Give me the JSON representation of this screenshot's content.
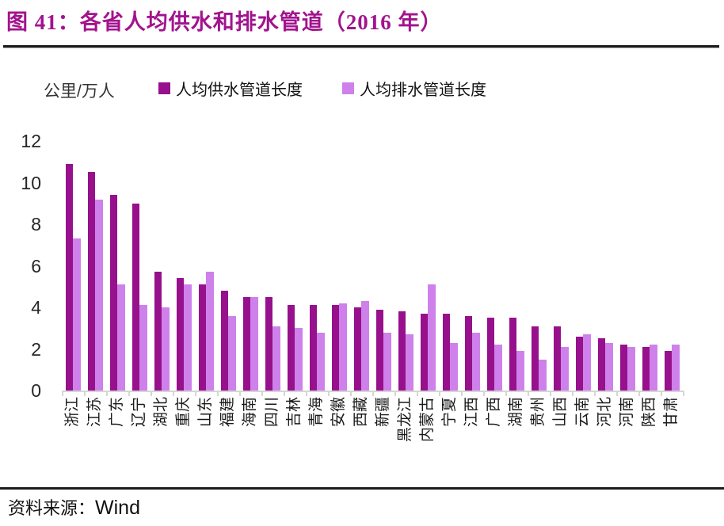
{
  "title": "图 41：各省人均供水和排水管道（2016 年）",
  "unit_label": "公里/万人",
  "source": {
    "prefix": "资料来源：",
    "name": "Wind"
  },
  "colors": {
    "supply": "#97108C",
    "drainage": "#CE81EA",
    "title": "#A2138E",
    "axis": "#D6D6D6",
    "text": "#262626"
  },
  "legend": [
    {
      "label": "人均供水管道长度",
      "color_key": "supply"
    },
    {
      "label": "人均排水管道长度",
      "color_key": "drainage"
    }
  ],
  "chart_data": {
    "type": "bar",
    "title": "各省人均供水和排水管道（2016 年）",
    "ylabel": "公里/万人",
    "xlabel": "",
    "ylim": [
      0,
      12
    ],
    "yticks": [
      0,
      2,
      4,
      6,
      8,
      10,
      12
    ],
    "grid": false,
    "legend_position": "top",
    "categories": [
      "浙江",
      "江苏",
      "广东",
      "辽宁",
      "湖北",
      "重庆",
      "山东",
      "福建",
      "海南",
      "四川",
      "吉林",
      "青海",
      "安徽",
      "西藏",
      "新疆",
      "黑龙江",
      "内蒙古",
      "宁夏",
      "江西",
      "广西",
      "湖南",
      "贵州",
      "山西",
      "云南",
      "河北",
      "河南",
      "陕西",
      "甘肃"
    ],
    "series": [
      {
        "name": "人均供水管道长度",
        "values": [
          10.9,
          10.5,
          9.4,
          9.0,
          5.7,
          5.4,
          5.1,
          4.8,
          4.5,
          4.5,
          4.1,
          4.1,
          4.1,
          4.0,
          3.9,
          3.8,
          3.7,
          3.7,
          3.6,
          3.5,
          3.5,
          3.1,
          3.1,
          2.6,
          2.5,
          2.2,
          2.1,
          1.9
        ]
      },
      {
        "name": "人均排水管道长度",
        "values": [
          7.3,
          9.2,
          5.1,
          4.1,
          4.0,
          5.1,
          5.7,
          3.6,
          4.5,
          3.1,
          3.0,
          2.8,
          4.2,
          4.3,
          2.8,
          2.7,
          5.1,
          2.3,
          2.8,
          2.2,
          1.9,
          1.5,
          2.1,
          2.7,
          2.3,
          2.1,
          2.2,
          2.2
        ]
      }
    ]
  }
}
